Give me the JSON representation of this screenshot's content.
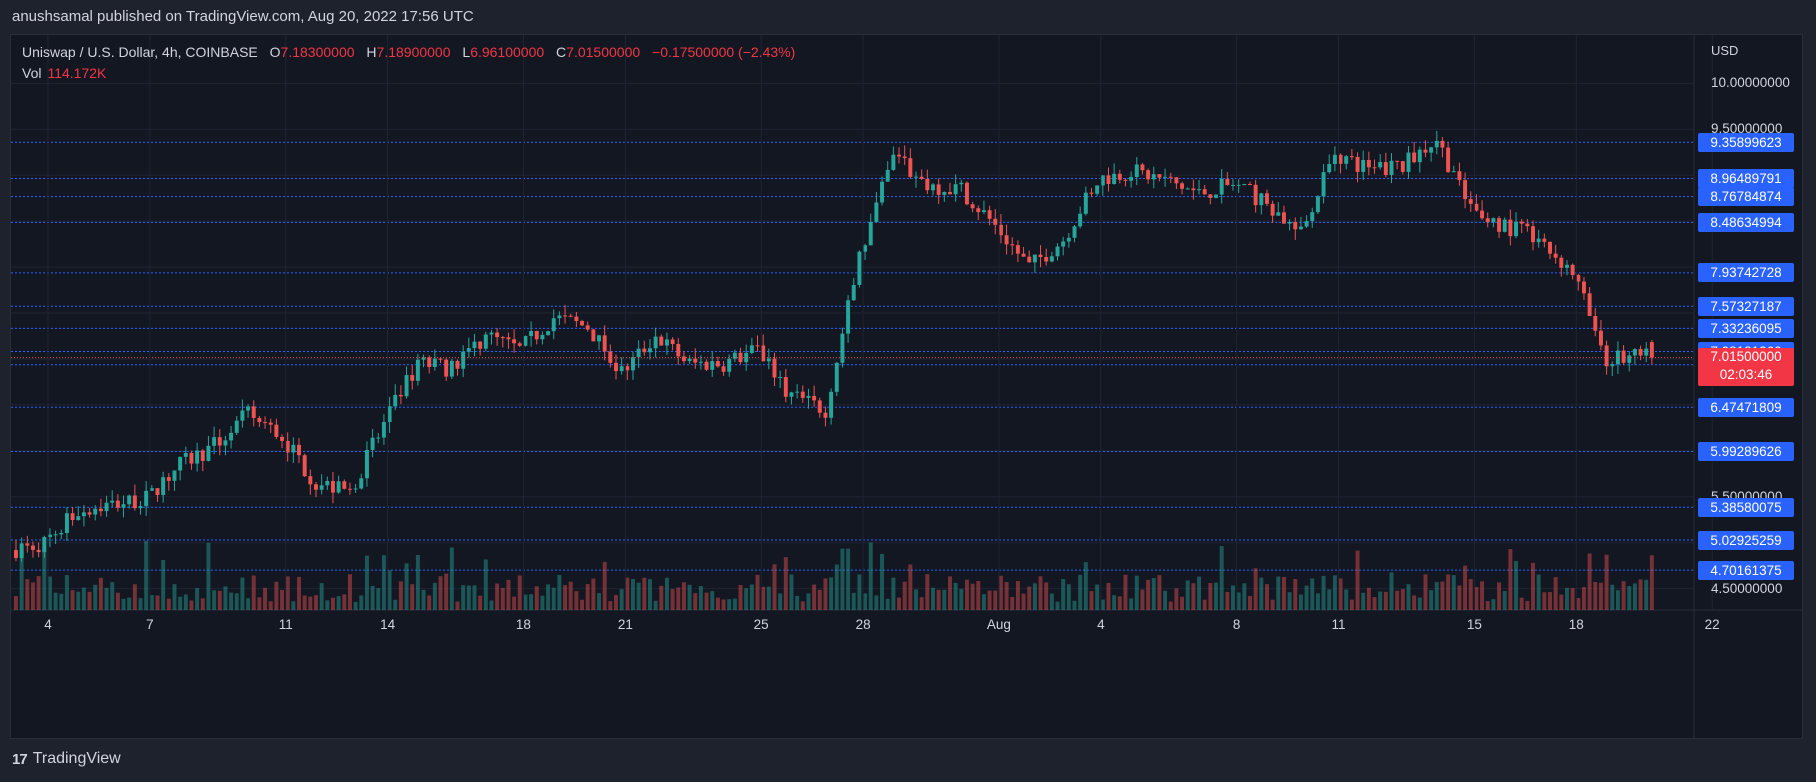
{
  "header": {
    "published_text": "anushsamal published on TradingView.com, Aug 20, 2022 17:56 UTC"
  },
  "legend": {
    "symbol": "Uniswap / U.S. Dollar, 4h, COINBASE",
    "open_k": "O",
    "open_v": "7.18300000",
    "high_k": "H",
    "high_v": "7.18900000",
    "low_k": "L",
    "low_v": "6.96100000",
    "close_k": "C",
    "close_v": "7.01500000",
    "change": "−0.17500000 (−2.43%)",
    "vol_k": "Vol",
    "vol_v": "114.172K"
  },
  "price_axis": {
    "currency": "USD",
    "ticks": [
      "10.00000000",
      "9.50000000",
      "5.50000000",
      "4.50000000"
    ],
    "current_price": "7.01500000",
    "countdown": "02:03:46",
    "levels": [
      "9.35899623",
      "8.96489791",
      "8.76784874",
      "8.48634994",
      "7.93742728",
      "7.57327187",
      "7.33236095",
      "7.08181360",
      "6.93726705",
      "6.47471809",
      "5.99289626",
      "5.38580075",
      "5.02925259",
      "4.70161375"
    ]
  },
  "time_axis": {
    "labels": [
      "4",
      "7",
      "11",
      "14",
      "18",
      "21",
      "25",
      "28",
      "Aug",
      "4",
      "8",
      "11",
      "15",
      "18",
      "22"
    ]
  },
  "footer": {
    "brand": "TradingView"
  },
  "colors": {
    "up": "#26a69a",
    "down": "#ef5350",
    "level": "#2962ff",
    "bg": "#131722"
  },
  "chart_data": {
    "type": "candlestick",
    "symbol": "Uniswap / U.S. Dollar",
    "interval": "4h",
    "exchange": "COINBASE",
    "x_range": [
      "2022-07-03",
      "2022-08-20"
    ],
    "y_range": [
      4.3,
      10.2
    ],
    "last": {
      "open": 7.183,
      "high": 7.189,
      "low": 6.961,
      "close": 7.015
    },
    "close_path": [
      [
        "2022-07-03",
        4.92
      ],
      [
        "2022-07-04",
        5.0
      ],
      [
        "2022-07-05",
        5.35
      ],
      [
        "2022-07-06",
        5.42
      ],
      [
        "2022-07-07",
        5.48
      ],
      [
        "2022-07-08",
        5.85
      ],
      [
        "2022-07-09",
        6.05
      ],
      [
        "2022-07-10",
        6.4
      ],
      [
        "2022-07-11",
        6.15
      ],
      [
        "2022-07-12",
        5.65
      ],
      [
        "2022-07-13",
        5.55
      ],
      [
        "2022-07-14",
        6.3
      ],
      [
        "2022-07-15",
        6.95
      ],
      [
        "2022-07-16",
        6.9
      ],
      [
        "2022-07-17",
        7.25
      ],
      [
        "2022-07-18",
        7.1
      ],
      [
        "2022-07-19",
        7.45
      ],
      [
        "2022-07-20",
        7.35
      ],
      [
        "2022-07-21",
        6.85
      ],
      [
        "2022-07-22",
        7.25
      ],
      [
        "2022-07-23",
        6.95
      ],
      [
        "2022-07-24",
        6.95
      ],
      [
        "2022-07-25",
        7.1
      ],
      [
        "2022-07-26",
        6.6
      ],
      [
        "2022-07-27",
        6.45
      ],
      [
        "2022-07-28",
        8.1
      ],
      [
        "2022-07-29",
        9.2
      ],
      [
        "2022-07-30",
        8.9
      ],
      [
        "2022-07-31",
        8.85
      ],
      [
        "2022-08-01",
        8.45
      ],
      [
        "2022-08-02",
        8.0
      ],
      [
        "2022-08-03",
        8.3
      ],
      [
        "2022-08-04",
        8.95
      ],
      [
        "2022-08-05",
        9.05
      ],
      [
        "2022-08-06",
        8.95
      ],
      [
        "2022-08-07",
        8.8
      ],
      [
        "2022-08-08",
        8.9
      ],
      [
        "2022-08-09",
        8.7
      ],
      [
        "2022-08-10",
        8.35
      ],
      [
        "2022-08-11",
        9.25
      ],
      [
        "2022-08-12",
        9.05
      ],
      [
        "2022-08-13",
        9.1
      ],
      [
        "2022-08-14",
        9.4
      ],
      [
        "2022-08-15",
        8.6
      ],
      [
        "2022-08-16",
        8.45
      ],
      [
        "2022-08-17",
        8.3
      ],
      [
        "2022-08-18",
        7.95
      ],
      [
        "2022-08-19",
        7.0
      ],
      [
        "2022-08-20",
        7.015
      ]
    ]
  }
}
